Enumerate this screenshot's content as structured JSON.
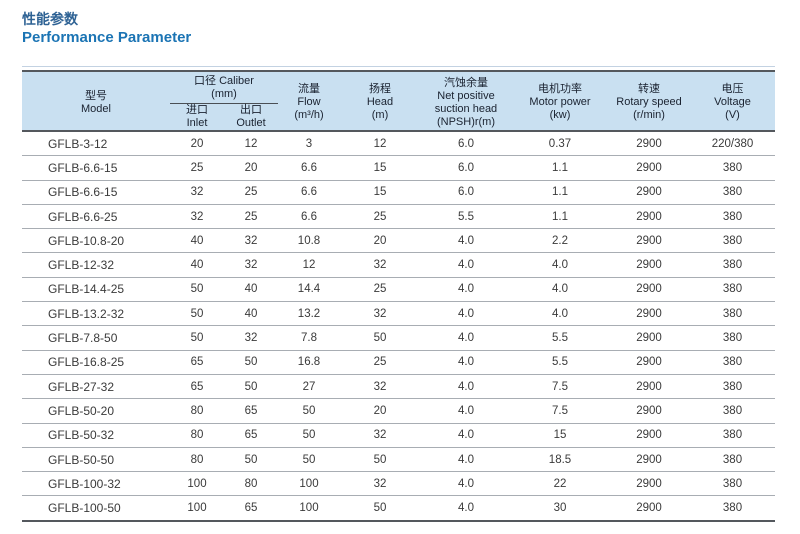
{
  "title": {
    "cn": "性能参数",
    "en": "Performance Parameter"
  },
  "table": {
    "header": {
      "model": {
        "cn": "型号",
        "en": "Model"
      },
      "caliber": {
        "cn": "口径 Caliber",
        "unit": "(mm)"
      },
      "inlet": {
        "cn": "进口",
        "en": "Inlet"
      },
      "outlet": {
        "cn": "出口",
        "en": "Outlet"
      },
      "flow": {
        "cn": "流量",
        "en": "Flow",
        "unit": "(m³/h)"
      },
      "head": {
        "cn": "扬程",
        "en": "Head",
        "unit": "(m)"
      },
      "npsh": {
        "cn": "汽蚀余量",
        "en1": "Net positive",
        "en2": "suction head",
        "unit": "(NPSH)r(m)"
      },
      "motor": {
        "cn": "电机功率",
        "en": "Motor power",
        "unit": "(kw)"
      },
      "speed": {
        "cn": "转速",
        "en": "Rotary speed",
        "unit": "(r/min)"
      },
      "voltage": {
        "cn": "电压",
        "en": "Voltage",
        "unit": "(V)"
      }
    },
    "rows": [
      [
        "GFLB-3-12",
        "20",
        "12",
        "3",
        "12",
        "6.0",
        "0.37",
        "2900",
        "220/380"
      ],
      [
        "GFLB-6.6-15",
        "25",
        "20",
        "6.6",
        "15",
        "6.0",
        "1.1",
        "2900",
        "380"
      ],
      [
        "GFLB-6.6-15",
        "32",
        "25",
        "6.6",
        "15",
        "6.0",
        "1.1",
        "2900",
        "380"
      ],
      [
        "GFLB-6.6-25",
        "32",
        "25",
        "6.6",
        "25",
        "5.5",
        "1.1",
        "2900",
        "380"
      ],
      [
        "GFLB-10.8-20",
        "40",
        "32",
        "10.8",
        "20",
        "4.0",
        "2.2",
        "2900",
        "380"
      ],
      [
        "GFLB-12-32",
        "40",
        "32",
        "12",
        "32",
        "4.0",
        "4.0",
        "2900",
        "380"
      ],
      [
        "GFLB-14.4-25",
        "50",
        "40",
        "14.4",
        "25",
        "4.0",
        "4.0",
        "2900",
        "380"
      ],
      [
        "GFLB-13.2-32",
        "50",
        "40",
        "13.2",
        "32",
        "4.0",
        "4.0",
        "2900",
        "380"
      ],
      [
        "GFLB-7.8-50",
        "50",
        "32",
        "7.8",
        "50",
        "4.0",
        "5.5",
        "2900",
        "380"
      ],
      [
        "GFLB-16.8-25",
        "65",
        "50",
        "16.8",
        "25",
        "4.0",
        "5.5",
        "2900",
        "380"
      ],
      [
        "GFLB-27-32",
        "65",
        "50",
        "27",
        "32",
        "4.0",
        "7.5",
        "2900",
        "380"
      ],
      [
        "GFLB-50-20",
        "80",
        "65",
        "50",
        "20",
        "4.0",
        "7.5",
        "2900",
        "380"
      ],
      [
        "GFLB-50-32",
        "80",
        "65",
        "50",
        "32",
        "4.0",
        "15",
        "2900",
        "380"
      ],
      [
        "GFLB-50-50",
        "80",
        "50",
        "50",
        "50",
        "4.0",
        "18.5",
        "2900",
        "380"
      ],
      [
        "GFLB-100-32",
        "100",
        "80",
        "100",
        "32",
        "4.0",
        "22",
        "2900",
        "380"
      ],
      [
        "GFLB-100-50",
        "100",
        "65",
        "100",
        "50",
        "4.0",
        "30",
        "2900",
        "380"
      ]
    ]
  },
  "colors": {
    "title_cn": "#2e6294",
    "title_en": "#1b74b4",
    "header_bg": "#c9e0f1",
    "border_dark": "#54585d",
    "row_line": "#a8adb3"
  }
}
